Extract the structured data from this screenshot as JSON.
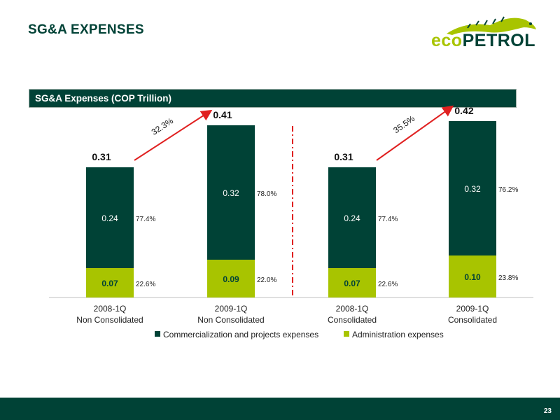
{
  "header": {
    "title": "SG&A EXPENSES"
  },
  "logo": {
    "text_eco": "eco",
    "text_petrol": "PETROL"
  },
  "banner": {
    "label": "SG&A Expenses (COP Trillion)"
  },
  "colors": {
    "dark": "#004236",
    "green": "#a8c400",
    "arrow": "#e02020",
    "divider": "#e02020"
  },
  "chart_data": {
    "type": "bar",
    "stacked": true,
    "categories": [
      [
        "2008-1Q",
        "Non Consolidated"
      ],
      [
        "2009-1Q",
        "Non Consolidated"
      ],
      [
        "2008-1Q",
        "Consolidated"
      ],
      [
        "2009-1Q",
        "Consolidated"
      ]
    ],
    "series": [
      {
        "name": "Administration expenses",
        "color": "#a8c400",
        "values": [
          0.07,
          0.09,
          0.07,
          0.1
        ],
        "labels": [
          "0.07",
          "0.09",
          "0.07",
          "0.10"
        ],
        "shares": [
          "22.6%",
          "22.0%",
          "22.6%",
          "23.8%"
        ]
      },
      {
        "name": "Commercialization and projects expenses",
        "color": "#004236",
        "values": [
          0.24,
          0.32,
          0.24,
          0.32
        ],
        "labels": [
          "0.24",
          "0.32",
          "0.24",
          "0.32"
        ],
        "shares": [
          "77.4%",
          "78.0%",
          "77.4%",
          "76.2%"
        ]
      }
    ],
    "totals": [
      "0.31",
      "0.41",
      "0.31",
      "0.42"
    ],
    "growth": [
      {
        "from": 0,
        "to": 1,
        "label": "32.3%"
      },
      {
        "from": 2,
        "to": 3,
        "label": "35.5%"
      }
    ],
    "legend": {
      "position": "bottom",
      "items": [
        "Commercialization and projects expenses",
        "Administration expenses"
      ]
    },
    "divider": "between-groups",
    "ylim": [
      0,
      0.42
    ]
  },
  "footer": {
    "page": "23"
  }
}
